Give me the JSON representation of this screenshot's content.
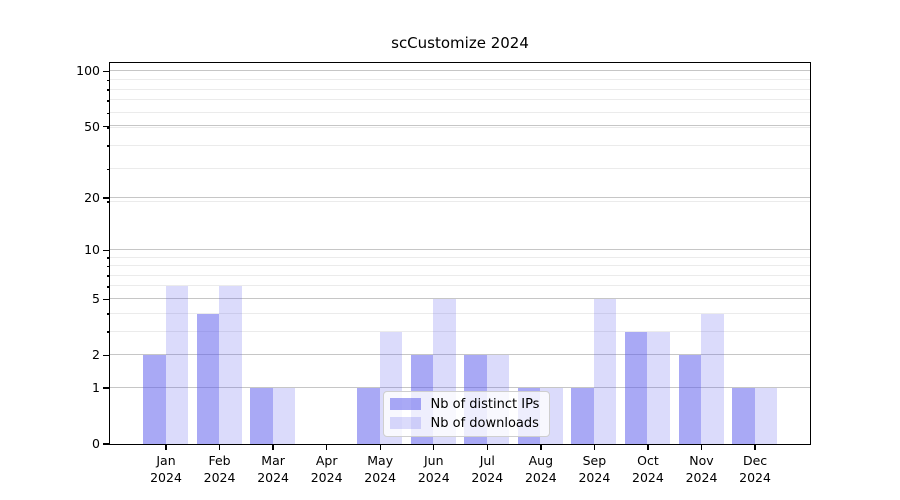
{
  "title": "scCustomize 2024",
  "chart_data": {
    "type": "bar",
    "title": "scCustomize 2024",
    "categories": [
      "Jan",
      "Feb",
      "Mar",
      "Apr",
      "May",
      "Jun",
      "Jul",
      "Aug",
      "Sep",
      "Oct",
      "Nov",
      "Dec"
    ],
    "year_label": "2024",
    "series": [
      {
        "name": "Nb of distinct IPs",
        "values": [
          2,
          4,
          1,
          0,
          1,
          2,
          2,
          1,
          1,
          3,
          2,
          1
        ],
        "color": "rgba(90,90,235,0.52)"
      },
      {
        "name": "Nb of downloads",
        "values": [
          6,
          6,
          1,
          0,
          3,
          5,
          2,
          1,
          5,
          3,
          4,
          1
        ],
        "color": "rgba(90,90,235,0.22)"
      }
    ],
    "y_scale": "log10(1+v)",
    "ylim": [
      0,
      111
    ],
    "y_major_ticks": [
      0,
      1,
      2,
      5,
      10,
      20,
      50,
      100
    ],
    "y_minor_ticks": [
      3,
      4,
      6,
      7,
      8,
      9,
      19,
      29,
      39,
      49,
      59,
      69,
      79,
      89
    ],
    "grid": true,
    "legend_position": "lower center"
  },
  "colors": {
    "spine": "#000000",
    "grid_major": "#c6c6c6",
    "grid_minor": "#ebebeb",
    "legend_border": "#cfcfcf",
    "legend_background": "rgba(255,255,255,0.8)",
    "text": "#000000"
  }
}
